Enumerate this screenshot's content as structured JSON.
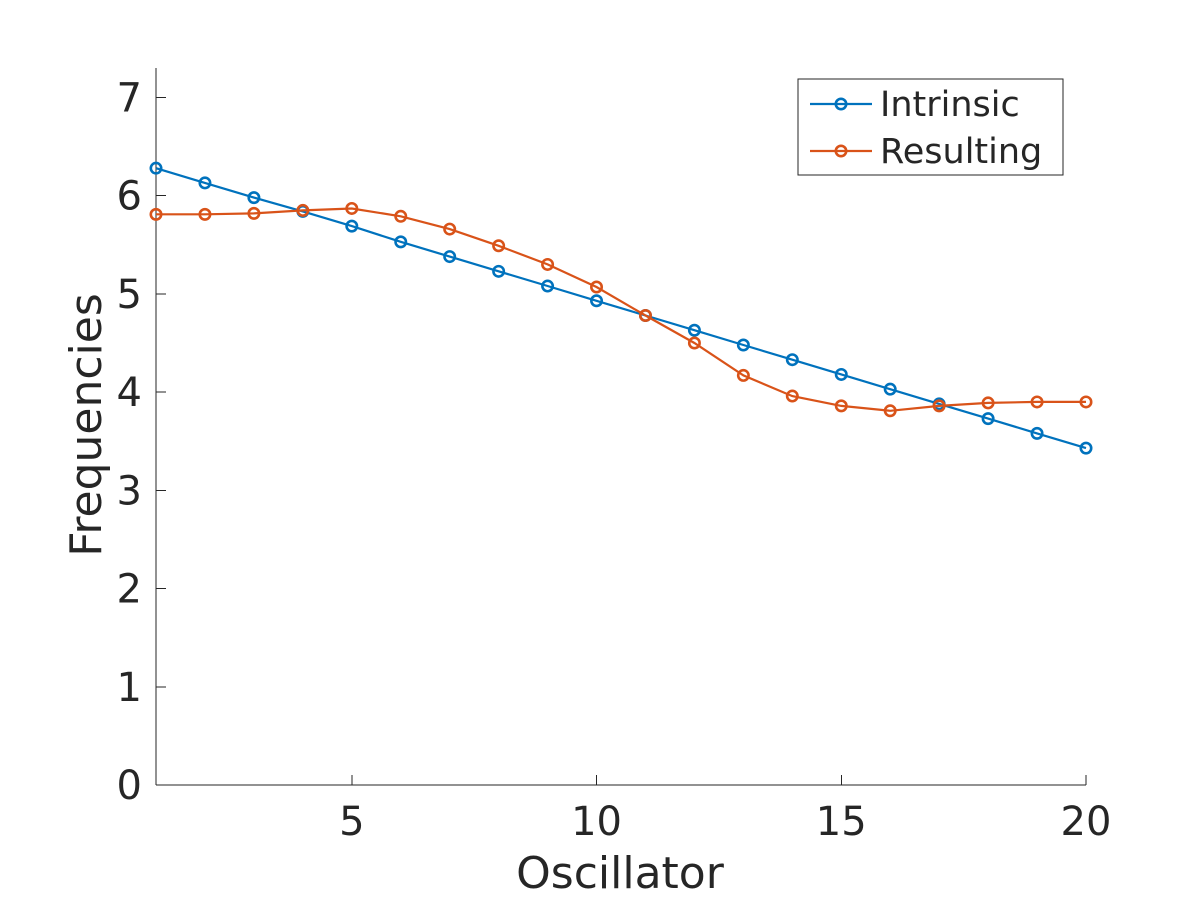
{
  "chart_data": {
    "type": "line",
    "xlabel": "Oscillator",
    "ylabel": "Frequencies",
    "xlim": [
      1,
      20
    ],
    "ylim": [
      0,
      7.3
    ],
    "xticks": [
      5,
      10,
      15,
      20
    ],
    "yticks": [
      0,
      1,
      2,
      3,
      4,
      5,
      6,
      7
    ],
    "grid": false,
    "legend_position": "top-right",
    "x": [
      1,
      2,
      3,
      4,
      5,
      6,
      7,
      8,
      9,
      10,
      11,
      12,
      13,
      14,
      15,
      16,
      17,
      18,
      19,
      20
    ],
    "series": [
      {
        "name": "Intrinsic",
        "color": "#0072BD",
        "marker": "circle",
        "values": [
          6.28,
          6.13,
          5.98,
          5.84,
          5.69,
          5.53,
          5.38,
          5.23,
          5.08,
          4.93,
          4.78,
          4.63,
          4.48,
          4.33,
          4.18,
          4.03,
          3.88,
          3.73,
          3.58,
          3.43
        ]
      },
      {
        "name": "Resulting",
        "color": "#D95319",
        "marker": "circle",
        "values": [
          5.81,
          5.81,
          5.82,
          5.85,
          5.87,
          5.79,
          5.66,
          5.49,
          5.3,
          5.07,
          4.78,
          4.5,
          4.17,
          3.96,
          3.86,
          3.81,
          3.86,
          3.89,
          3.9,
          3.9
        ]
      }
    ]
  }
}
